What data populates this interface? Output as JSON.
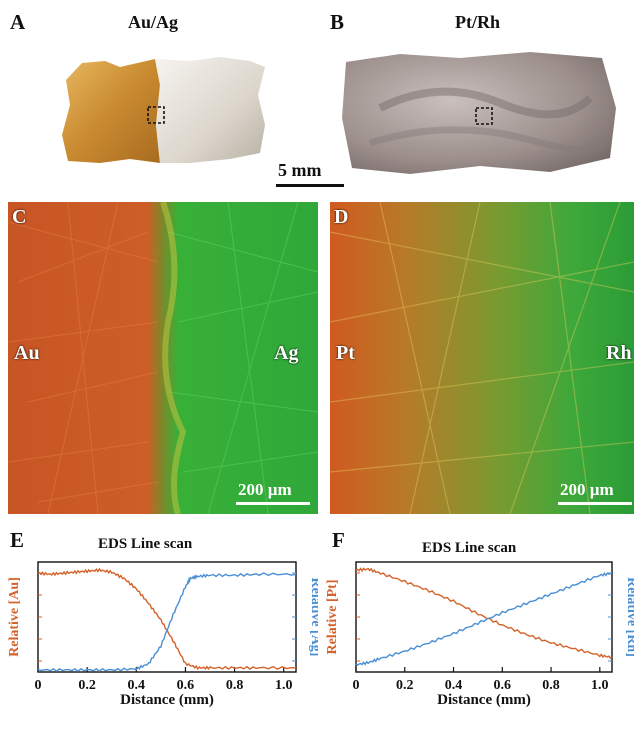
{
  "panels": {
    "A": {
      "letter": "A",
      "title": "Au/Ag"
    },
    "B": {
      "letter": "B",
      "title": "Pt/Rh"
    },
    "scale_top": "5 mm",
    "C": {
      "letter": "C",
      "left": "Au",
      "right": "Ag",
      "scale": "200 µm"
    },
    "D": {
      "letter": "D",
      "left": "Pt",
      "right": "Rh",
      "scale": "200 µm"
    },
    "E": {
      "letter": "E"
    },
    "F": {
      "letter": "F"
    }
  },
  "colors": {
    "au": "#d4622a",
    "ag": "#4a8fd4",
    "green": "#33b233"
  },
  "chart_data": [
    {
      "type": "line",
      "title": "EDS Line scan",
      "xlabel": "Distance (mm)",
      "ylabel_left": "Relative [Au]",
      "ylabel_right": "Relative [Ag]",
      "xlim": [
        0,
        1.05
      ],
      "ylim": [
        0,
        1
      ],
      "xticks": [
        "0",
        "0.2",
        "0.4",
        "0.6",
        "0.8",
        "1.0"
      ],
      "series": [
        {
          "name": "Relative [Au]",
          "color": "#d4622a",
          "x": [
            0,
            0.05,
            0.1,
            0.15,
            0.2,
            0.25,
            0.3,
            0.35,
            0.4,
            0.45,
            0.5,
            0.55,
            0.6,
            0.65,
            0.7,
            0.8,
            0.9,
            1.05
          ],
          "y": [
            0.95,
            0.94,
            0.95,
            0.96,
            0.97,
            0.98,
            0.96,
            0.9,
            0.8,
            0.66,
            0.5,
            0.3,
            0.08,
            0.04,
            0.04,
            0.04,
            0.04,
            0.04
          ]
        },
        {
          "name": "Relative [Ag]",
          "color": "#4a8fd4",
          "x": [
            0,
            0.1,
            0.2,
            0.3,
            0.4,
            0.45,
            0.5,
            0.55,
            0.6,
            0.62,
            0.65,
            0.7,
            0.8,
            0.9,
            1.05
          ],
          "y": [
            0.02,
            0.02,
            0.02,
            0.02,
            0.03,
            0.08,
            0.25,
            0.55,
            0.82,
            0.9,
            0.92,
            0.93,
            0.93,
            0.94,
            0.94
          ]
        }
      ]
    },
    {
      "type": "line",
      "title": "EDS Line scan",
      "xlabel": "Distance (mm)",
      "ylabel_left": "Relative [Pt]",
      "ylabel_right": "Relative [Rh]",
      "xlim": [
        0,
        1.05
      ],
      "ylim": [
        0,
        1
      ],
      "xticks": [
        "0",
        "0.2",
        "0.4",
        "0.6",
        "0.8",
        "1.0"
      ],
      "series": [
        {
          "name": "Relative [Pt]",
          "color": "#d4622a",
          "x": [
            0,
            0.05,
            0.1,
            0.2,
            0.3,
            0.4,
            0.5,
            0.6,
            0.7,
            0.8,
            0.9,
            1.0,
            1.05
          ],
          "y": [
            0.98,
            0.99,
            0.95,
            0.87,
            0.78,
            0.68,
            0.56,
            0.45,
            0.36,
            0.28,
            0.22,
            0.16,
            0.14
          ]
        },
        {
          "name": "Relative [Rh]",
          "color": "#4a8fd4",
          "x": [
            0,
            0.05,
            0.1,
            0.2,
            0.3,
            0.4,
            0.5,
            0.6,
            0.7,
            0.8,
            0.9,
            1.0,
            1.05
          ],
          "y": [
            0.07,
            0.09,
            0.13,
            0.2,
            0.28,
            0.37,
            0.47,
            0.57,
            0.66,
            0.75,
            0.84,
            0.93,
            0.95
          ]
        }
      ]
    }
  ]
}
